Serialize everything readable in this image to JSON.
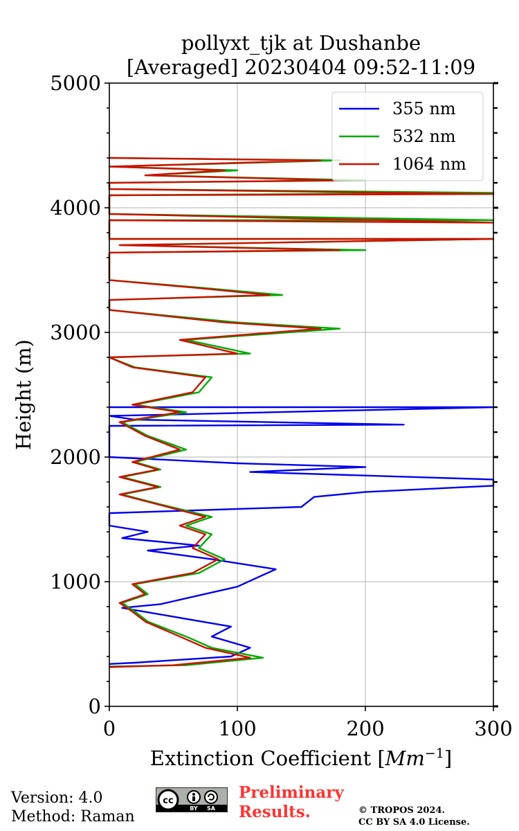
{
  "chart_data": {
    "type": "line",
    "title": "pollyxt_tjk at Dushanbe",
    "subtitle": "[Averaged] 20230404 09:52-11:09",
    "xlabel": "Extinction Coefficient [",
    "xlabel_unit": "Mm",
    "xlabel_exp": "−1",
    "xlabel_close": "]",
    "ylabel": "Height (m)",
    "xlim": [
      0,
      300
    ],
    "ylim": [
      0,
      5000
    ],
    "xticks": [
      0,
      100,
      200,
      300
    ],
    "xtick_labels": [
      "0",
      "100",
      "200",
      "300"
    ],
    "yticks": [
      0,
      1000,
      2000,
      3000,
      4000,
      5000
    ],
    "ytick_labels": [
      "0",
      "1000",
      "2000",
      "3000",
      "4000",
      "5000"
    ],
    "grid": true,
    "legend_position": "top-right",
    "series": [
      {
        "name": "355 nm",
        "color": "#0000ee",
        "points": [
          [
            0,
            340
          ],
          [
            20,
            350
          ],
          [
            95,
            400
          ],
          [
            110,
            470
          ],
          [
            80,
            560
          ],
          [
            95,
            640
          ],
          [
            10,
            790
          ],
          [
            40,
            820
          ],
          [
            100,
            960
          ],
          [
            130,
            1100
          ],
          [
            80,
            1180
          ],
          [
            30,
            1250
          ],
          [
            70,
            1290
          ],
          [
            10,
            1350
          ],
          [
            30,
            1400
          ],
          [
            0,
            1450
          ],
          [
            0,
            1550
          ],
          [
            150,
            1600
          ],
          [
            160,
            1680
          ],
          [
            200,
            1720
          ],
          [
            300,
            1770
          ],
          [
            300,
            1820
          ],
          [
            110,
            1880
          ],
          [
            200,
            1920
          ],
          [
            100,
            1950
          ],
          [
            0,
            2000
          ],
          [
            0,
            2250
          ],
          [
            230,
            2260
          ],
          [
            20,
            2300
          ],
          [
            0,
            2330
          ],
          [
            300,
            2400
          ],
          [
            0,
            2400
          ]
        ]
      },
      {
        "name": "532 nm",
        "color": "#00aa00",
        "points": [
          [
            0,
            320
          ],
          [
            60,
            330
          ],
          [
            120,
            390
          ],
          [
            80,
            470
          ],
          [
            60,
            560
          ],
          [
            30,
            680
          ],
          [
            20,
            760
          ],
          [
            10,
            830
          ],
          [
            30,
            900
          ],
          [
            20,
            980
          ],
          [
            70,
            1070
          ],
          [
            90,
            1180
          ],
          [
            70,
            1270
          ],
          [
            80,
            1380
          ],
          [
            60,
            1450
          ],
          [
            80,
            1520
          ],
          [
            40,
            1620
          ],
          [
            10,
            1700
          ],
          [
            40,
            1760
          ],
          [
            10,
            1840
          ],
          [
            40,
            1900
          ],
          [
            20,
            1960
          ],
          [
            60,
            2060
          ],
          [
            30,
            2170
          ],
          [
            10,
            2280
          ],
          [
            60,
            2360
          ],
          [
            20,
            2420
          ],
          [
            70,
            2520
          ],
          [
            80,
            2640
          ],
          [
            20,
            2720
          ],
          [
            0,
            2800
          ],
          [
            110,
            2830
          ],
          [
            60,
            2940
          ],
          [
            180,
            3030
          ],
          [
            100,
            3080
          ],
          [
            0,
            3180
          ],
          [
            0,
            3260
          ],
          [
            135,
            3300
          ],
          [
            70,
            3360
          ],
          [
            0,
            3420
          ],
          [
            0,
            3640
          ],
          [
            200,
            3660
          ],
          [
            10,
            3700
          ],
          [
            300,
            3750
          ],
          [
            0,
            3750
          ],
          [
            0,
            3900
          ],
          [
            300,
            3900
          ],
          [
            0,
            3950
          ],
          [
            0,
            4100
          ],
          [
            300,
            4120
          ],
          [
            0,
            4150
          ],
          [
            0,
            4200
          ],
          [
            200,
            4220
          ],
          [
            30,
            4260
          ],
          [
            100,
            4300
          ],
          [
            0,
            4330
          ],
          [
            180,
            4380
          ],
          [
            0,
            4400
          ]
        ]
      },
      {
        "name": "1064 nm",
        "color": "#cc1100",
        "points": [
          [
            0,
            315
          ],
          [
            50,
            330
          ],
          [
            110,
            390
          ],
          [
            75,
            470
          ],
          [
            55,
            560
          ],
          [
            28,
            680
          ],
          [
            18,
            760
          ],
          [
            8,
            830
          ],
          [
            28,
            900
          ],
          [
            18,
            980
          ],
          [
            65,
            1070
          ],
          [
            85,
            1180
          ],
          [
            65,
            1270
          ],
          [
            75,
            1380
          ],
          [
            55,
            1450
          ],
          [
            75,
            1520
          ],
          [
            38,
            1620
          ],
          [
            8,
            1700
          ],
          [
            38,
            1760
          ],
          [
            8,
            1840
          ],
          [
            38,
            1900
          ],
          [
            18,
            1960
          ],
          [
            55,
            2060
          ],
          [
            28,
            2170
          ],
          [
            8,
            2280
          ],
          [
            55,
            2360
          ],
          [
            18,
            2420
          ],
          [
            65,
            2520
          ],
          [
            75,
            2640
          ],
          [
            18,
            2720
          ],
          [
            0,
            2800
          ],
          [
            100,
            2830
          ],
          [
            55,
            2940
          ],
          [
            165,
            3030
          ],
          [
            90,
            3080
          ],
          [
            0,
            3180
          ],
          [
            0,
            3260
          ],
          [
            125,
            3300
          ],
          [
            65,
            3360
          ],
          [
            0,
            3420
          ],
          [
            0,
            3640
          ],
          [
            180,
            3660
          ],
          [
            8,
            3700
          ],
          [
            300,
            3750
          ],
          [
            0,
            3750
          ],
          [
            0,
            3900
          ],
          [
            300,
            3880
          ],
          [
            0,
            3950
          ],
          [
            0,
            4100
          ],
          [
            300,
            4110
          ],
          [
            0,
            4150
          ],
          [
            0,
            4200
          ],
          [
            180,
            4220
          ],
          [
            28,
            4260
          ],
          [
            90,
            4300
          ],
          [
            0,
            4330
          ],
          [
            165,
            4380
          ],
          [
            0,
            4400
          ]
        ]
      }
    ]
  },
  "footer": {
    "version": "Version: 4.0",
    "method": "Method: Raman",
    "preliminary_line1": "Preliminary",
    "preliminary_line2": "Results.",
    "copyright_line1": "© TROPOS 2024.",
    "copyright_line2": "CC BY SA 4.0 License.",
    "cc_label": "cc",
    "by_label": "BY",
    "sa_label": "SA"
  }
}
